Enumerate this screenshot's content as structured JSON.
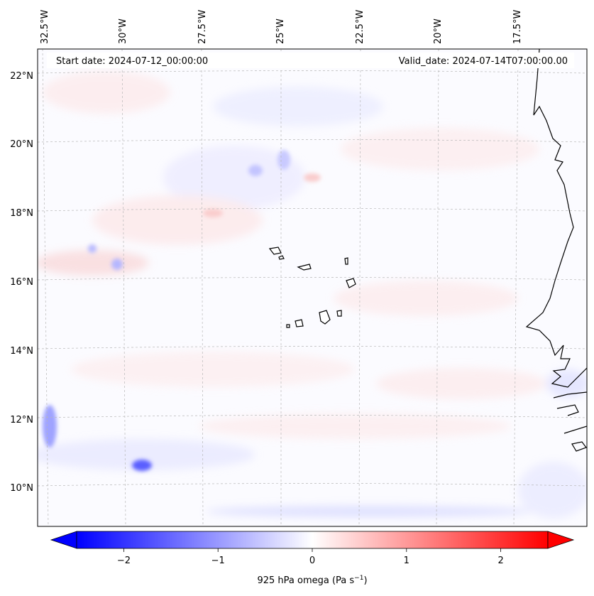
{
  "map": {
    "start_date": "Start date: 2024-07-12_00:00:00",
    "valid_date": "Valid_date: 2024-07-14T07:00:00.00",
    "lon_labels": [
      "32.5°W",
      "30°W",
      "27.5°W",
      "25°W",
      "22.5°W",
      "20°W",
      "17.5°W"
    ],
    "lat_labels": [
      "22°N",
      "20°N",
      "18°N",
      "16°N",
      "14°N",
      "12°N",
      "10°N"
    ],
    "gridlines": "dashed",
    "features": [
      "Cabo Verde islands",
      "West African coastline"
    ]
  },
  "colorbar": {
    "label": "925 hPa omega (Pa s",
    "label_sup": "−1",
    "label_close": ")",
    "ticks": [
      "−2",
      "−1",
      "0",
      "1",
      "2"
    ],
    "tick_values": [
      -2,
      -1,
      0,
      1,
      2
    ],
    "range": [
      -2.5,
      2.5
    ],
    "colormap": "bwr",
    "extend": "both",
    "neg_color": "#0000ff",
    "mid_color": "#ffffff",
    "pos_color": "#ff0000"
  },
  "chart_data": {
    "type": "heatmap",
    "title": "",
    "xlabel": "",
    "ylabel": "",
    "x_ticks": [
      "32.5°W",
      "30°W",
      "27.5°W",
      "25°W",
      "22.5°W",
      "20°W",
      "17.5°W"
    ],
    "y_ticks": [
      "22°N",
      "20°N",
      "18°N",
      "16°N",
      "14°N",
      "12°N",
      "10°N"
    ],
    "colorbar_range": [
      -2.5,
      2.5
    ],
    "colorbar_label": "925 hPa omega (Pa s−1)"
  }
}
